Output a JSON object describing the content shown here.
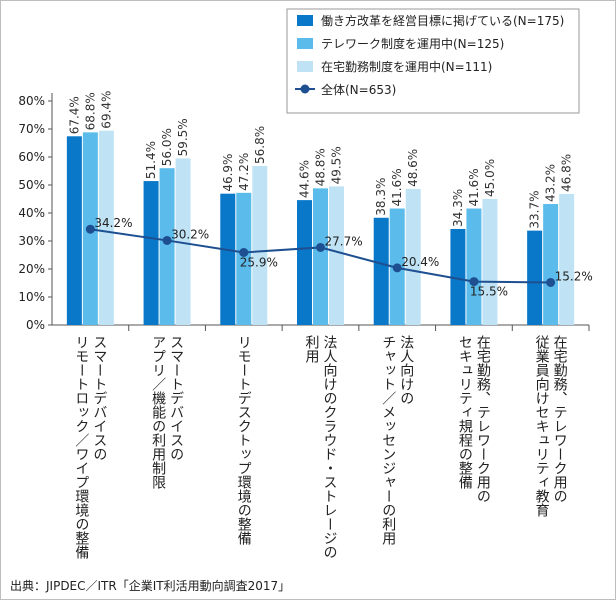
{
  "chart_data": {
    "type": "bar",
    "categories": [
      [
        "スマートデバイスの",
        "リモートロック／ワイプ環境の整備"
      ],
      [
        "スマートデバイスの",
        "アプリ／機能の利用制限"
      ],
      [
        "リモートデスクトップ環境の整備"
      ],
      [
        "法人向けのクラウド・ストレージの",
        "利用"
      ],
      [
        "法人向けの",
        "チャット／メッセンジャーの利用"
      ],
      [
        "在宅勤務、テレワーク用の",
        "セキュリティ規程の整備"
      ],
      [
        "在宅勤務、テレワーク用の",
        "従業員向けセキュリティ教育"
      ]
    ],
    "series": [
      {
        "name": "働き方改革を経営目標に掲げている(N=175)",
        "color": "#0a78c8",
        "values": [
          67.4,
          51.4,
          46.9,
          44.6,
          38.3,
          34.3,
          33.7
        ]
      },
      {
        "name": "テレワーク制度を運用中(N=125)",
        "color": "#5bbcec",
        "values": [
          68.8,
          56.0,
          47.2,
          48.8,
          41.6,
          41.6,
          43.2
        ]
      },
      {
        "name": "在宅勤務制度を運用中(N=111)",
        "color": "#bfe3f5",
        "values": [
          69.4,
          59.5,
          56.8,
          49.5,
          48.6,
          45.0,
          46.8
        ]
      }
    ],
    "line_series": {
      "name": "全体(N=653)",
      "color": "#1d4f91",
      "values": [
        34.2,
        30.2,
        25.9,
        27.7,
        20.4,
        15.5,
        15.2
      ]
    },
    "ylim": [
      0,
      80
    ],
    "yticks": [
      "0%",
      "10%",
      "20%",
      "30%",
      "40%",
      "50%",
      "60%",
      "70%",
      "80%"
    ],
    "value_labels": [
      [
        "67.4%",
        "51.4%",
        "46.9%",
        "44.6%",
        "38.3%",
        "34.3%",
        "33.7%"
      ],
      [
        "68.8%",
        "56.0%",
        "47.2%",
        "48.8%",
        "41.6%",
        "41.6%",
        "43.2%"
      ],
      [
        "69.4%",
        "59.5%",
        "56.8%",
        "49.5%",
        "48.6%",
        "45.0%",
        "46.8%"
      ]
    ],
    "line_labels": [
      "34.2%",
      "30.2%",
      "25.9%",
      "27.7%",
      "20.4%",
      "15.5%",
      "15.2%"
    ],
    "legend_position": "top-right",
    "grid": false
  },
  "source": "出典：JIPDEC／ITR「企業IT利活用動向調査2017」"
}
